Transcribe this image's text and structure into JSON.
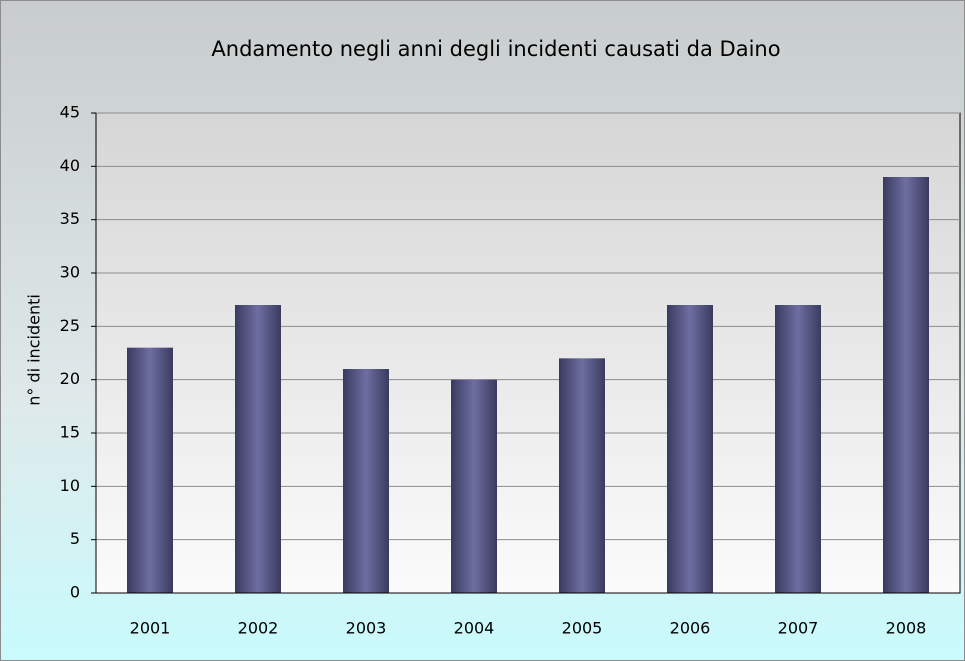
{
  "chart_data": {
    "type": "bar",
    "title": "Andamento negli anni degli incidenti causati da Daino",
    "y_label": "n° di incidenti",
    "categories": [
      "2001",
      "2002",
      "2003",
      "2004",
      "2005",
      "2006",
      "2007",
      "2008"
    ],
    "values": [
      23,
      27,
      21,
      20,
      22,
      27,
      27,
      39
    ],
    "color": "#5a5a8c",
    "ylim": [
      0,
      45
    ],
    "yticks": [
      0,
      5,
      10,
      15,
      20,
      25,
      30,
      35,
      40,
      45
    ],
    "grid": true
  }
}
